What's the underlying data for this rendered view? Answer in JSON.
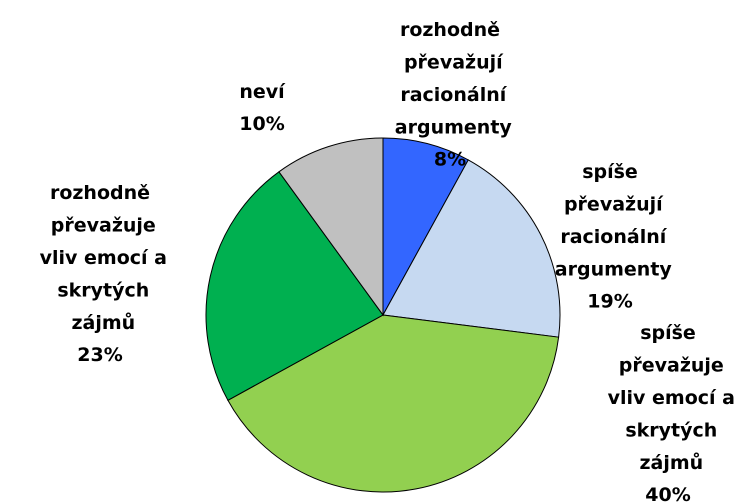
{
  "chart_data": {
    "type": "pie",
    "categories": [
      "rozhodně převažují racionální argumenty",
      "spíše převažují racionální argumenty",
      "spíše převažuje vliv emocí a skrytých zájmů",
      "rozhodně převažuje vliv emocí a skrytých zájmů",
      "neví"
    ],
    "values": [
      8,
      19,
      40,
      23,
      10
    ],
    "value_labels": [
      "8%",
      "19%",
      "40%",
      "23%",
      "10%"
    ],
    "colors": [
      "#3366ff",
      "#c6d9f1",
      "#92d050",
      "#00b050",
      "#c0c0c0"
    ]
  }
}
